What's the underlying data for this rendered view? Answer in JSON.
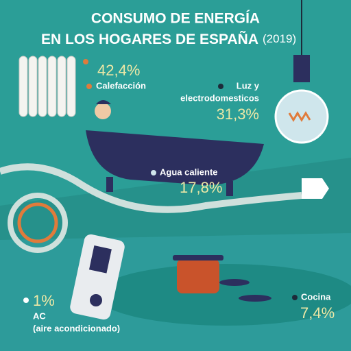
{
  "header": {
    "title_line1": "CONSUMO DE ENERGÍA",
    "title_line2": "EN LOS HOGARES DE ESPAÑA",
    "year": "(2019)"
  },
  "items": [
    {
      "value": "42,4%",
      "label": "Calefacción"
    },
    {
      "label_line1": "Luz y",
      "label_line2": "electrodomesticos",
      "value": "31,3%"
    },
    {
      "label": "Agua caliente",
      "value": "17,8%"
    },
    {
      "value": "1%",
      "label_line1": "AC",
      "label_line2": "(aire acondicionado)"
    },
    {
      "label": "Cocina",
      "value": "7,4%"
    }
  ]
}
